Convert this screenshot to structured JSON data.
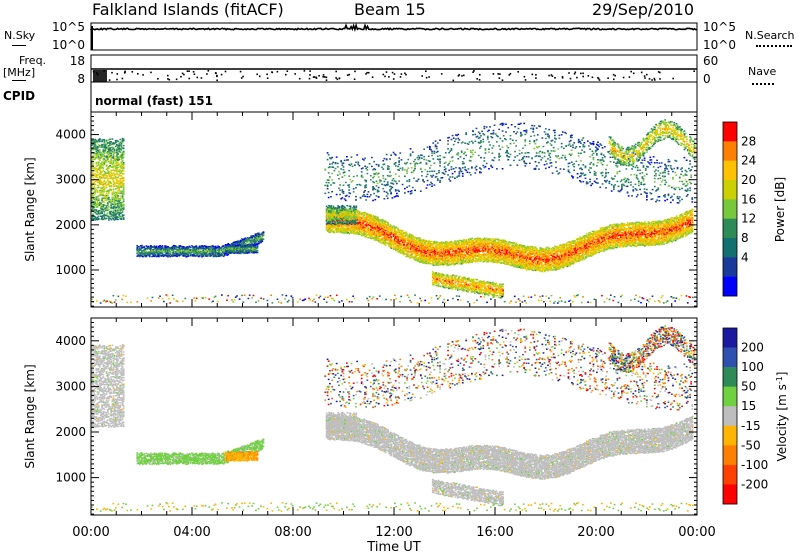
{
  "header": {
    "site": "Falkland Islands (fitACF)",
    "beam": "Beam 15",
    "date": "29/Sep/2010"
  },
  "left_labels": {
    "nsky": "N.Sky",
    "freq": "Freq.",
    "freq_unit": "[MHz]",
    "cpid": "CPID"
  },
  "right_labels": {
    "nsearch": "N.Search",
    "nave": "Nave"
  },
  "cpid_value": "normal (fast) 151",
  "chart_data": [
    {
      "type": "line",
      "name": "noise-panel",
      "left_axis": {
        "ticks": [
          "10^5",
          "10^0"
        ]
      },
      "right_axis": {
        "ticks": [
          "10^5",
          "10^0"
        ]
      }
    },
    {
      "type": "scatter",
      "name": "frequency-panel",
      "left_axis": {
        "ticks": [
          "18",
          "8"
        ]
      },
      "right_axis": {
        "ticks": [
          "60",
          "0"
        ]
      }
    },
    {
      "type": "heatmap",
      "name": "power-panel",
      "ylabel": "Slant Range [km]",
      "yticks": [
        1000,
        2000,
        3000,
        4000
      ],
      "ylim": [
        180,
        4500
      ],
      "colorbar": {
        "label": "Power [dB]",
        "ticks": [
          "28",
          "24",
          "20",
          "16",
          "12",
          "8",
          "4"
        ],
        "colors": [
          "#ff0000",
          "#ff7f00",
          "#ffc200",
          "#cdd000",
          "#78c83c",
          "#2e8b57",
          "#147070",
          "#1a3a9a",
          "#0000ff"
        ]
      }
    },
    {
      "type": "heatmap",
      "name": "velocity-panel",
      "ylabel": "Slant Range [km]",
      "yticks": [
        1000,
        2000,
        3000,
        4000
      ],
      "ylim": [
        180,
        4500
      ],
      "colorbar": {
        "label": "Velocity [m s^-1]",
        "ticks": [
          "200",
          "100",
          "50",
          "15",
          "-15",
          "-50",
          "-100",
          "-200"
        ],
        "colors": [
          "#1a1aa0",
          "#3050b0",
          "#2e8b57",
          "#6fd040",
          "#bebebe",
          "#ffb400",
          "#ff7f00",
          "#ff4000",
          "#ff0000"
        ]
      }
    }
  ],
  "xaxis": {
    "label": "Time UT",
    "ticks": [
      "00:00",
      "04:00",
      "08:00",
      "12:00",
      "16:00",
      "20:00",
      "00:00"
    ]
  }
}
